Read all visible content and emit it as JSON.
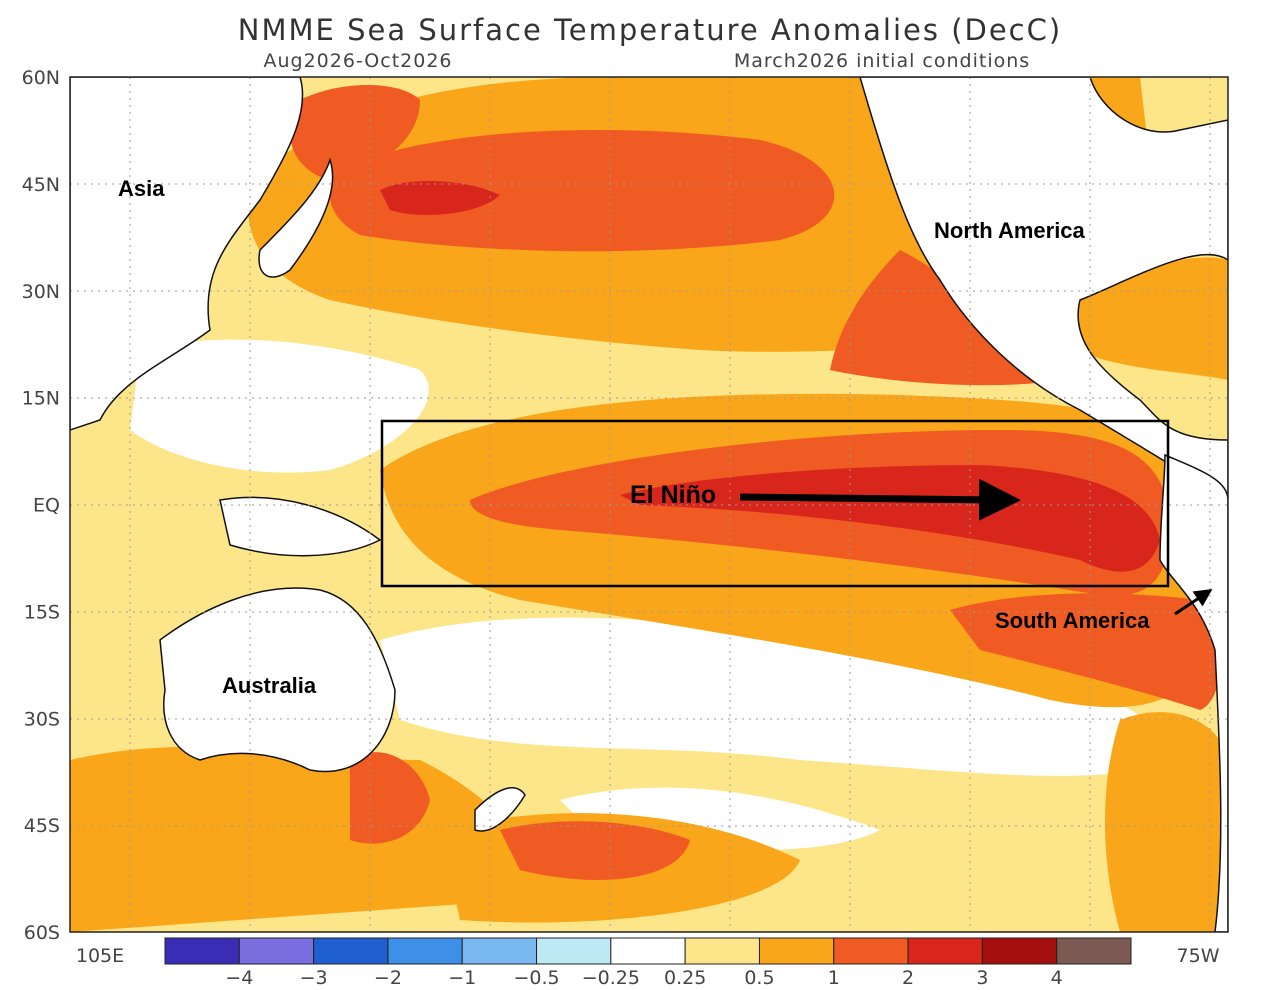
{
  "title": "NMME Sea Surface Temperature Anomalies (DecC)",
  "subtitle_left": "Aug2026-Oct2026",
  "subtitle_right": "March2026 initial conditions",
  "lat_labels": [
    "60N",
    "45N",
    "30N",
    "15N",
    "EQ",
    "15S",
    "30S",
    "45S",
    "60S"
  ],
  "lon_labels": [
    "105E",
    "75W"
  ],
  "regions": [
    "Asia",
    "North America",
    "Australia",
    "South America"
  ],
  "annotation": "El Niño",
  "colorbar": {
    "colors": [
      "#3a2db5",
      "#7a6ee0",
      "#1f5fd0",
      "#3d8fe8",
      "#79b8f0",
      "#bfe8f5",
      "#ffffff",
      "#fde68a",
      "#f9a61a",
      "#f05a23",
      "#d9261c",
      "#a5100f",
      "#7a5a52"
    ],
    "labels": [
      "−4",
      "−3",
      "−2",
      "−1",
      "−0.5",
      "−0.25",
      "0.25",
      "0.5",
      "1",
      "2",
      "3",
      "4"
    ]
  }
}
